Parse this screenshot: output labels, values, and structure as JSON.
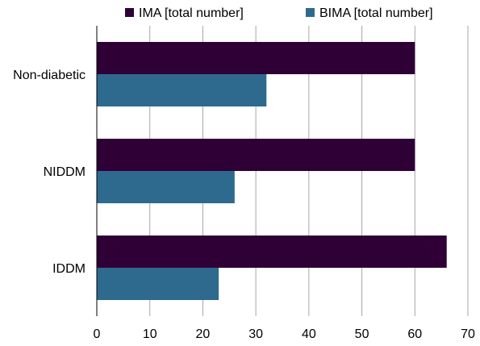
{
  "chart_data": {
    "type": "bar",
    "orientation": "horizontal",
    "categories": [
      "Non-diabetic",
      "NIDDM",
      "IDDM"
    ],
    "series": [
      {
        "name": "IMA [total number]",
        "values": [
          60,
          60,
          66
        ],
        "color": "#2e0036"
      },
      {
        "name": "BIMA [total number]",
        "values": [
          32,
          26,
          23
        ],
        "color": "#2e6a8e"
      }
    ],
    "title": "",
    "xlabel": "",
    "ylabel": "",
    "xlim": [
      0,
      70
    ],
    "ticks": [
      "0",
      "10",
      "20",
      "30",
      "40",
      "50",
      "60",
      "70"
    ],
    "grid": "vertical",
    "legend_position": "top"
  }
}
